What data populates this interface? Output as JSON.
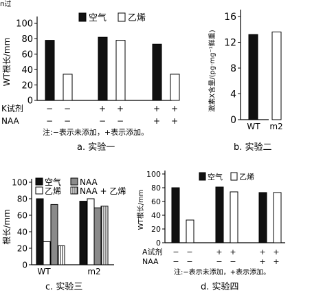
{
  "header_fragment": "п过",
  "colors": {
    "air": "#111111",
    "ethylene": "#ffffff",
    "naa": "#8a8a8a",
    "combo": "hatched-vertical"
  },
  "chart_data": [
    {
      "id": "a",
      "type": "bar",
      "caption": "a. 实验一",
      "ylabel": "WT根长/mm",
      "ylim": [
        0,
        100
      ],
      "yticks": [
        "0",
        "20",
        "40",
        "60",
        "80",
        "100"
      ],
      "legend": [
        "空气",
        "乙烯"
      ],
      "legend_placement": "top",
      "treatment_rows": [
        {
          "label": "K试剂",
          "marks": [
            "−",
            "−",
            "+",
            "+",
            "+",
            "+"
          ]
        },
        {
          "label": "NAA",
          "marks": [
            "−",
            "−",
            "−",
            "−",
            "+",
            "+"
          ]
        }
      ],
      "series": [
        {
          "name": "空气",
          "values": [
            78,
            82,
            73
          ]
        },
        {
          "name": "乙烯",
          "values": [
            34,
            78,
            34
          ]
        }
      ],
      "note": "注:−表示未添加，+表示添加。"
    },
    {
      "id": "b",
      "type": "bar",
      "caption": "b. 实验二",
      "ylabel": "激素X含量/(pg·mg⁻¹鲜重)",
      "ylim": [
        0,
        16
      ],
      "yticks": [
        "0",
        "4",
        "8",
        "12",
        "16"
      ],
      "categories": [
        "WT",
        "m2"
      ],
      "values": [
        13.2,
        13.6
      ],
      "fills": [
        "#111111",
        "#ffffff"
      ]
    },
    {
      "id": "c",
      "type": "bar",
      "caption": "c. 实验三",
      "ylabel": "根长/mm",
      "ylim": [
        0,
        100
      ],
      "yticks": [
        "0",
        "20",
        "40",
        "60",
        "80",
        "100"
      ],
      "categories": [
        "WT",
        "m2"
      ],
      "legend": [
        "空气",
        "NAA",
        "乙烯",
        "NAA + 乙烯"
      ],
      "legend_placement": "top",
      "series": [
        {
          "name": "空气",
          "values": [
            80,
            77
          ]
        },
        {
          "name": "乙烯",
          "values": [
            28,
            80
          ]
        },
        {
          "name": "NAA",
          "values": [
            73,
            69
          ]
        },
        {
          "name": "NAA + 乙烯",
          "values": [
            23,
            71
          ]
        }
      ]
    },
    {
      "id": "d",
      "type": "bar",
      "caption": "d. 实验四",
      "ylabel": "WT根长/mm",
      "ylim": [
        0,
        100
      ],
      "yticks": [
        "0",
        "20",
        "40",
        "60",
        "80",
        "100"
      ],
      "legend": [
        "空气",
        "乙烯"
      ],
      "legend_placement": "top",
      "treatment_rows": [
        {
          "label": "A试剂",
          "marks": [
            "−",
            "−",
            "+",
            "+",
            "+",
            "+"
          ]
        },
        {
          "label": "NAA",
          "marks": [
            "−",
            "−",
            "−",
            "−",
            "+",
            "+"
          ]
        }
      ],
      "series": [
        {
          "name": "空气",
          "values": [
            80,
            81,
            73
          ]
        },
        {
          "name": "乙烯",
          "values": [
            33,
            74,
            73
          ]
        }
      ],
      "note": "注:−表示未添加，+表示添加。"
    }
  ]
}
